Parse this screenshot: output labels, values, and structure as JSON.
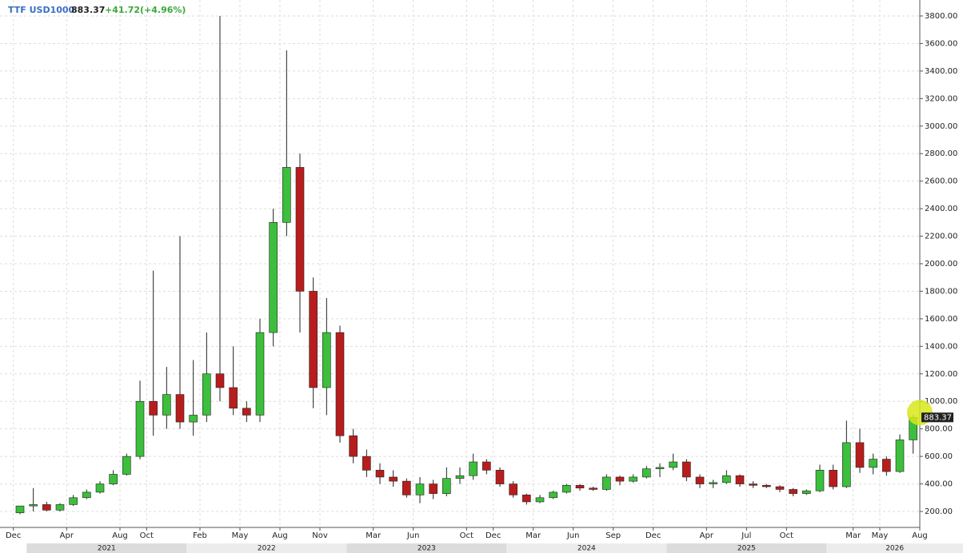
{
  "chart_data": {
    "type": "candlestick",
    "symbol": "TTF USD1000",
    "last": 883.37,
    "change": "+41.72(+4.96%)",
    "up_color": "#3cbf3c",
    "down_color": "#b81d1d",
    "grid": true,
    "xlim": [
      "2020-11",
      "2026-08"
    ],
    "ylim": [
      84,
      3916
    ],
    "yticks": [
      {
        "value": 200,
        "label": "200.00"
      },
      {
        "value": 400,
        "label": "400.00"
      },
      {
        "value": 600,
        "label": "600.00"
      },
      {
        "value": 800,
        "label": "800.00"
      },
      {
        "value": 1000,
        "label": "1000.00"
      },
      {
        "value": 1200,
        "label": "1200.00"
      },
      {
        "value": 1400,
        "label": "1400.00"
      },
      {
        "value": 1600,
        "label": "1600.00"
      },
      {
        "value": 1800,
        "label": "1800.00"
      },
      {
        "value": 2000,
        "label": "2000.00"
      },
      {
        "value": 2200,
        "label": "2200.00"
      },
      {
        "value": 2400,
        "label": "2400.00"
      },
      {
        "value": 2600,
        "label": "2600.00"
      },
      {
        "value": 2800,
        "label": "2800.00"
      },
      {
        "value": 3000,
        "label": "3000.00"
      },
      {
        "value": 3200,
        "label": "3200.00"
      },
      {
        "value": 3400,
        "label": "3400.00"
      },
      {
        "value": 3600,
        "label": "3600.00"
      },
      {
        "value": 3800,
        "label": "3800.00"
      }
    ],
    "xticks": [
      {
        "value": "2020-12",
        "label": "Dec"
      },
      {
        "value": "2021-04",
        "label": "Apr"
      },
      {
        "value": "2021-08",
        "label": "Aug"
      },
      {
        "value": "2021-10",
        "label": "Oct"
      },
      {
        "value": "2022-02",
        "label": "Feb"
      },
      {
        "value": "2022-05",
        "label": "May"
      },
      {
        "value": "2022-08",
        "label": "Aug"
      },
      {
        "value": "2022-11",
        "label": "Nov"
      },
      {
        "value": "2023-03",
        "label": "Mar"
      },
      {
        "value": "2023-06",
        "label": "Jun"
      },
      {
        "value": "2023-10",
        "label": "Oct"
      },
      {
        "value": "2023-12",
        "label": "Dec"
      },
      {
        "value": "2024-03",
        "label": "Mar"
      },
      {
        "value": "2024-06",
        "label": "Jun"
      },
      {
        "value": "2024-09",
        "label": "Sep"
      },
      {
        "value": "2024-12",
        "label": "Dec"
      },
      {
        "value": "2025-04",
        "label": "Apr"
      },
      {
        "value": "2025-07",
        "label": "Jul"
      },
      {
        "value": "2025-10",
        "label": "Oct"
      },
      {
        "value": "2026-03",
        "label": "Mar"
      },
      {
        "value": "2026-05",
        "label": "May"
      },
      {
        "value": "2026-08",
        "label": "Aug"
      }
    ],
    "year_labels": [
      "2021",
      "2022",
      "2023",
      "2024",
      "2025",
      "2026"
    ],
    "x": [
      "2020-12",
      "2021-01",
      "2021-02",
      "2021-03",
      "2021-04",
      "2021-05",
      "2021-06",
      "2021-07",
      "2021-08",
      "2021-09",
      "2021-10",
      "2021-11",
      "2021-12",
      "2022-01",
      "2022-02",
      "2022-03",
      "2022-04",
      "2022-05",
      "2022-06",
      "2022-07",
      "2022-08",
      "2022-09",
      "2022-10",
      "2022-11",
      "2022-12",
      "2023-01",
      "2023-02",
      "2023-03",
      "2023-04",
      "2023-05",
      "2023-06",
      "2023-07",
      "2023-08",
      "2023-09",
      "2023-10",
      "2023-11",
      "2023-12",
      "2024-01",
      "2024-02",
      "2024-03",
      "2024-04",
      "2024-05",
      "2024-06",
      "2024-07",
      "2024-08",
      "2024-09",
      "2024-10",
      "2024-11",
      "2024-12",
      "2025-01",
      "2025-02",
      "2025-03",
      "2025-04",
      "2025-05",
      "2025-06",
      "2025-07",
      "2025-08",
      "2025-09",
      "2025-10",
      "2025-11",
      "2025-12",
      "2026-01",
      "2026-02",
      "2026-03",
      "2026-04",
      "2026-05",
      "2026-06",
      "2026-07"
    ],
    "open": [
      190,
      240,
      250,
      210,
      250,
      300,
      340,
      400,
      470,
      600,
      1000,
      900,
      1050,
      850,
      900,
      1200,
      1100,
      950,
      900,
      1500,
      2300,
      2700,
      1800,
      1100,
      1500,
      750,
      600,
      500,
      450,
      420,
      320,
      400,
      330,
      440,
      460,
      560,
      500,
      400,
      320,
      270,
      300,
      340,
      390,
      370,
      360,
      450,
      420,
      450,
      510,
      520,
      560,
      450,
      400,
      410,
      460,
      400,
      390,
      380,
      360,
      330,
      350,
      500,
      380,
      700,
      520,
      580,
      490,
      720
    ],
    "high": [
      240,
      370,
      270,
      260,
      320,
      360,
      420,
      500,
      620,
      1150,
      1950,
      1250,
      2200,
      1300,
      1500,
      3800,
      1400,
      1000,
      1600,
      2400,
      3550,
      2800,
      1900,
      1750,
      1550,
      800,
      650,
      550,
      500,
      440,
      450,
      430,
      520,
      520,
      620,
      580,
      520,
      420,
      330,
      320,
      350,
      400,
      400,
      380,
      470,
      460,
      470,
      530,
      550,
      620,
      580,
      470,
      430,
      500,
      470,
      420,
      400,
      390,
      370,
      360,
      540,
      540,
      860,
      800,
      620,
      600,
      760,
      900
    ],
    "low": [
      180,
      200,
      200,
      200,
      240,
      290,
      330,
      390,
      460,
      580,
      750,
      800,
      800,
      750,
      850,
      1000,
      900,
      850,
      850,
      1400,
      2200,
      1500,
      950,
      900,
      700,
      550,
      450,
      400,
      380,
      300,
      260,
      290,
      310,
      400,
      430,
      470,
      380,
      300,
      250,
      260,
      290,
      330,
      350,
      350,
      350,
      390,
      410,
      440,
      450,
      500,
      420,
      370,
      370,
      400,
      380,
      370,
      370,
      340,
      310,
      320,
      340,
      360,
      370,
      480,
      470,
      460,
      480,
      620
    ],
    "close": [
      240,
      250,
      210,
      250,
      300,
      340,
      400,
      470,
      600,
      1000,
      900,
      1050,
      850,
      900,
      1200,
      1100,
      950,
      900,
      1500,
      2300,
      2700,
      1800,
      1100,
      1500,
      750,
      600,
      500,
      450,
      420,
      320,
      400,
      330,
      440,
      460,
      560,
      500,
      400,
      320,
      270,
      300,
      340,
      390,
      370,
      360,
      450,
      420,
      450,
      510,
      520,
      560,
      450,
      400,
      410,
      460,
      400,
      390,
      380,
      360,
      330,
      350,
      500,
      380,
      700,
      520,
      580,
      490,
      720,
      883.37
    ]
  }
}
